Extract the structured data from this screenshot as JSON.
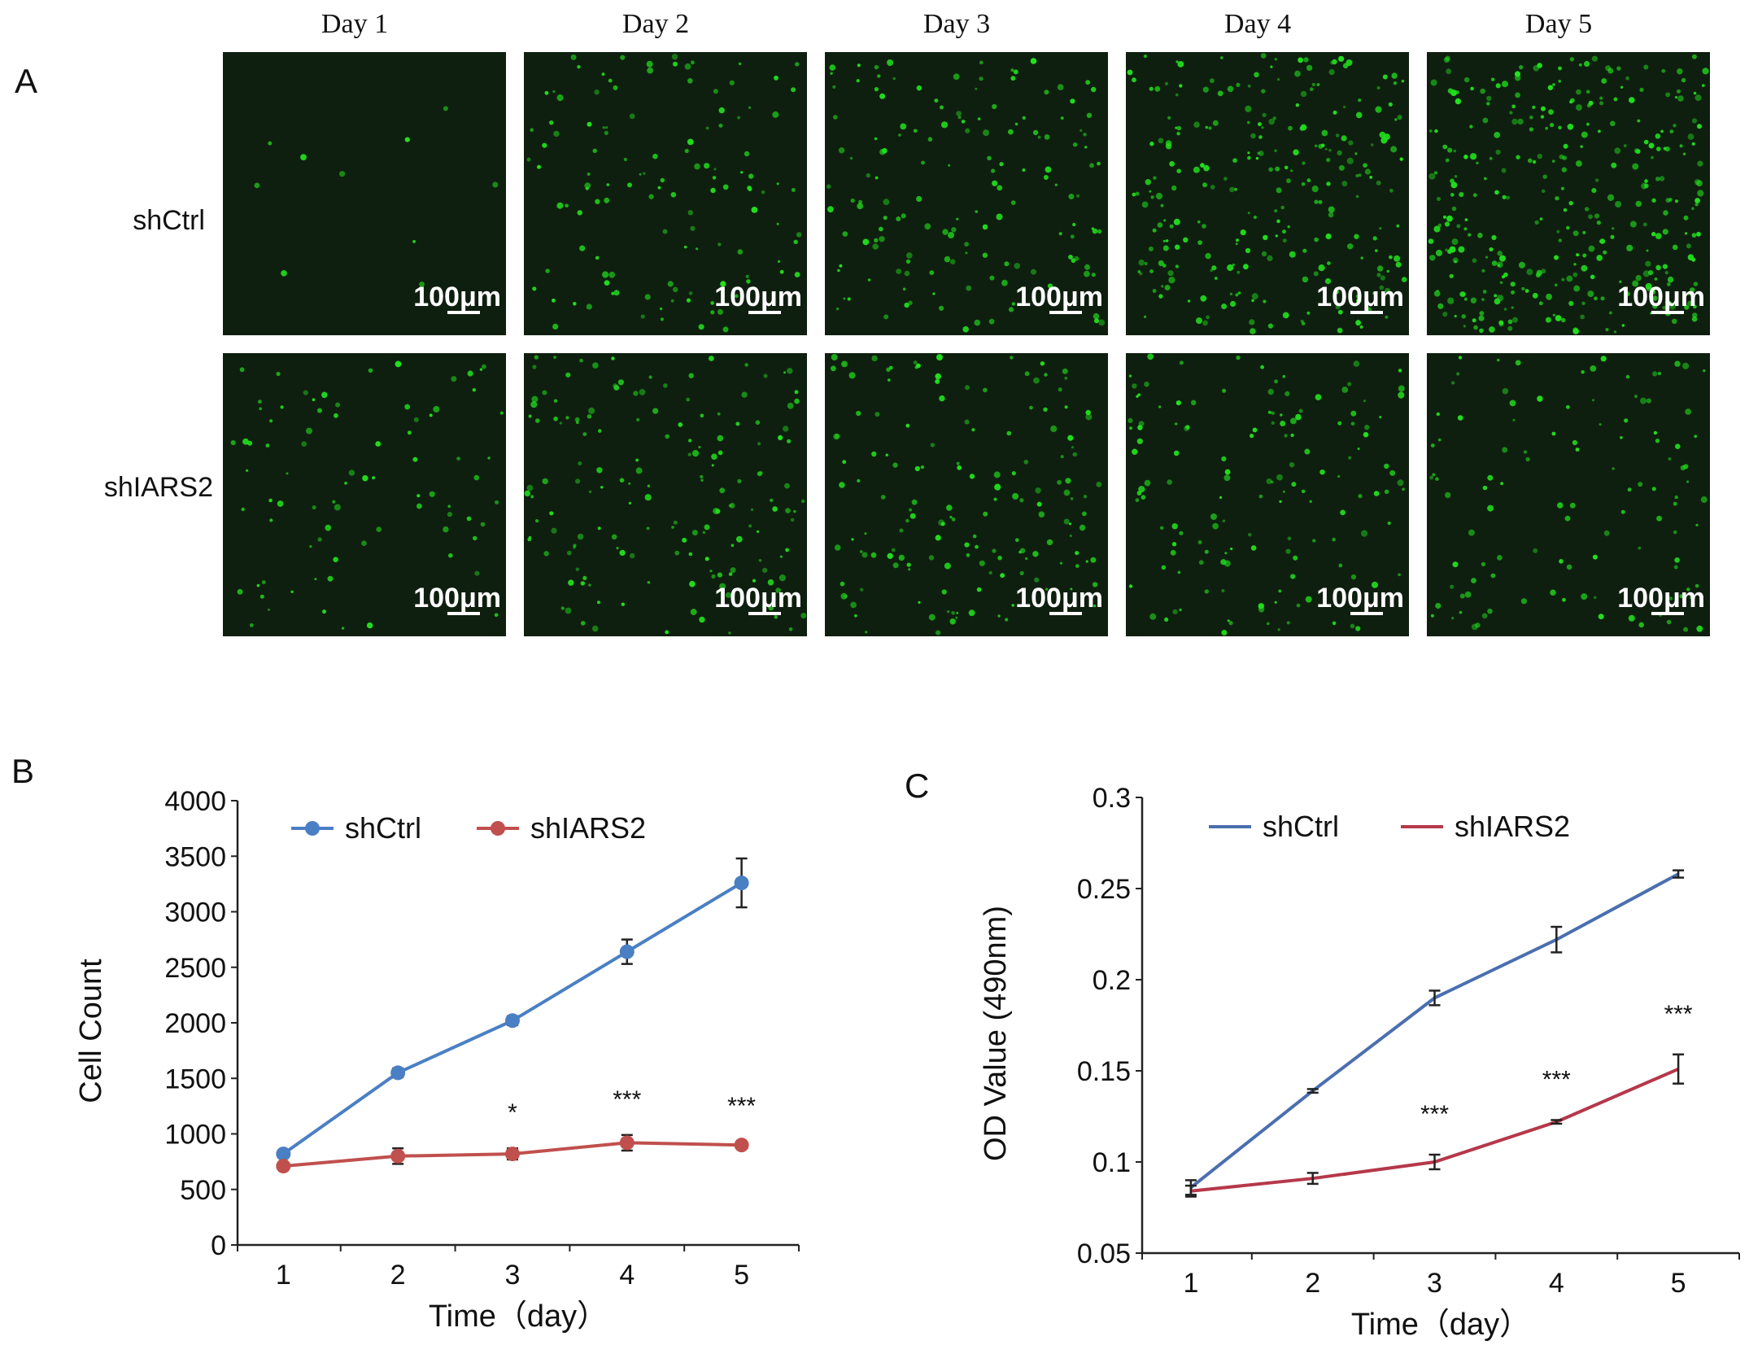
{
  "panel_a": {
    "label": "A",
    "days": [
      "Day 1",
      "Day 2",
      "Day 3",
      "Day 4",
      "Day 5"
    ],
    "rows": [
      "shCtrl",
      "shIARS2"
    ],
    "scale_bar": "100μm",
    "cell_color": "#22e01e",
    "background_color": "#0f1f0f",
    "cell_density": [
      [
        10,
        120,
        150,
        260,
        340
      ],
      [
        80,
        160,
        150,
        140,
        110
      ]
    ]
  },
  "chart_data": [
    {
      "panel": "B",
      "type": "line",
      "ylabel": "Cell Count",
      "xlabel": "Time（day）",
      "x": [
        1,
        2,
        3,
        4,
        5
      ],
      "xticks": [
        "1",
        "2",
        "3",
        "4",
        "5"
      ],
      "ylim": [
        0,
        4000
      ],
      "yticks": [
        "0",
        "500",
        "1000",
        "1500",
        "2000",
        "2500",
        "3000",
        "3500",
        "4000"
      ],
      "legend_position": "top-left",
      "grid": false,
      "series": [
        {
          "name": "shCtrl",
          "color": "#4a7fc4",
          "marker": "circle",
          "values": [
            820,
            1550,
            2020,
            2640,
            3260
          ],
          "errors": [
            30,
            40,
            40,
            110,
            220
          ]
        },
        {
          "name": "shIARS2",
          "color": "#c0504d",
          "marker": "circle",
          "values": [
            710,
            800,
            820,
            920,
            900
          ],
          "errors": [
            30,
            70,
            50,
            70,
            30
          ]
        }
      ],
      "significance": [
        {
          "x": 3,
          "text": "*"
        },
        {
          "x": 4,
          "text": "***"
        },
        {
          "x": 5,
          "text": "***"
        }
      ]
    },
    {
      "panel": "C",
      "type": "line",
      "ylabel": "OD Value (490nm)",
      "xlabel": "Time（day）",
      "x": [
        1,
        2,
        3,
        4,
        5
      ],
      "xticks": [
        "1",
        "2",
        "3",
        "4",
        "5"
      ],
      "ylim": [
        0.05,
        0.3
      ],
      "yticks": [
        "0.05",
        "0.1",
        "0.15",
        "0.2",
        "0.25",
        "0.3"
      ],
      "legend_position": "top-left",
      "grid": false,
      "series": [
        {
          "name": "shCtrl",
          "color": "#4a6fb0",
          "marker": "none",
          "values": [
            0.086,
            0.139,
            0.19,
            0.222,
            0.258
          ],
          "errors": [
            0.004,
            0.001,
            0.004,
            0.007,
            0.002
          ]
        },
        {
          "name": "shIARS2",
          "color": "#b5384a",
          "marker": "none",
          "values": [
            0.084,
            0.091,
            0.1,
            0.122,
            0.151
          ],
          "errors": [
            0.003,
            0.003,
            0.004,
            0.001,
            0.008
          ]
        }
      ],
      "significance": [
        {
          "x": 3,
          "text": "***"
        },
        {
          "x": 4,
          "text": "***"
        },
        {
          "x": 5,
          "text": "***"
        }
      ]
    }
  ]
}
